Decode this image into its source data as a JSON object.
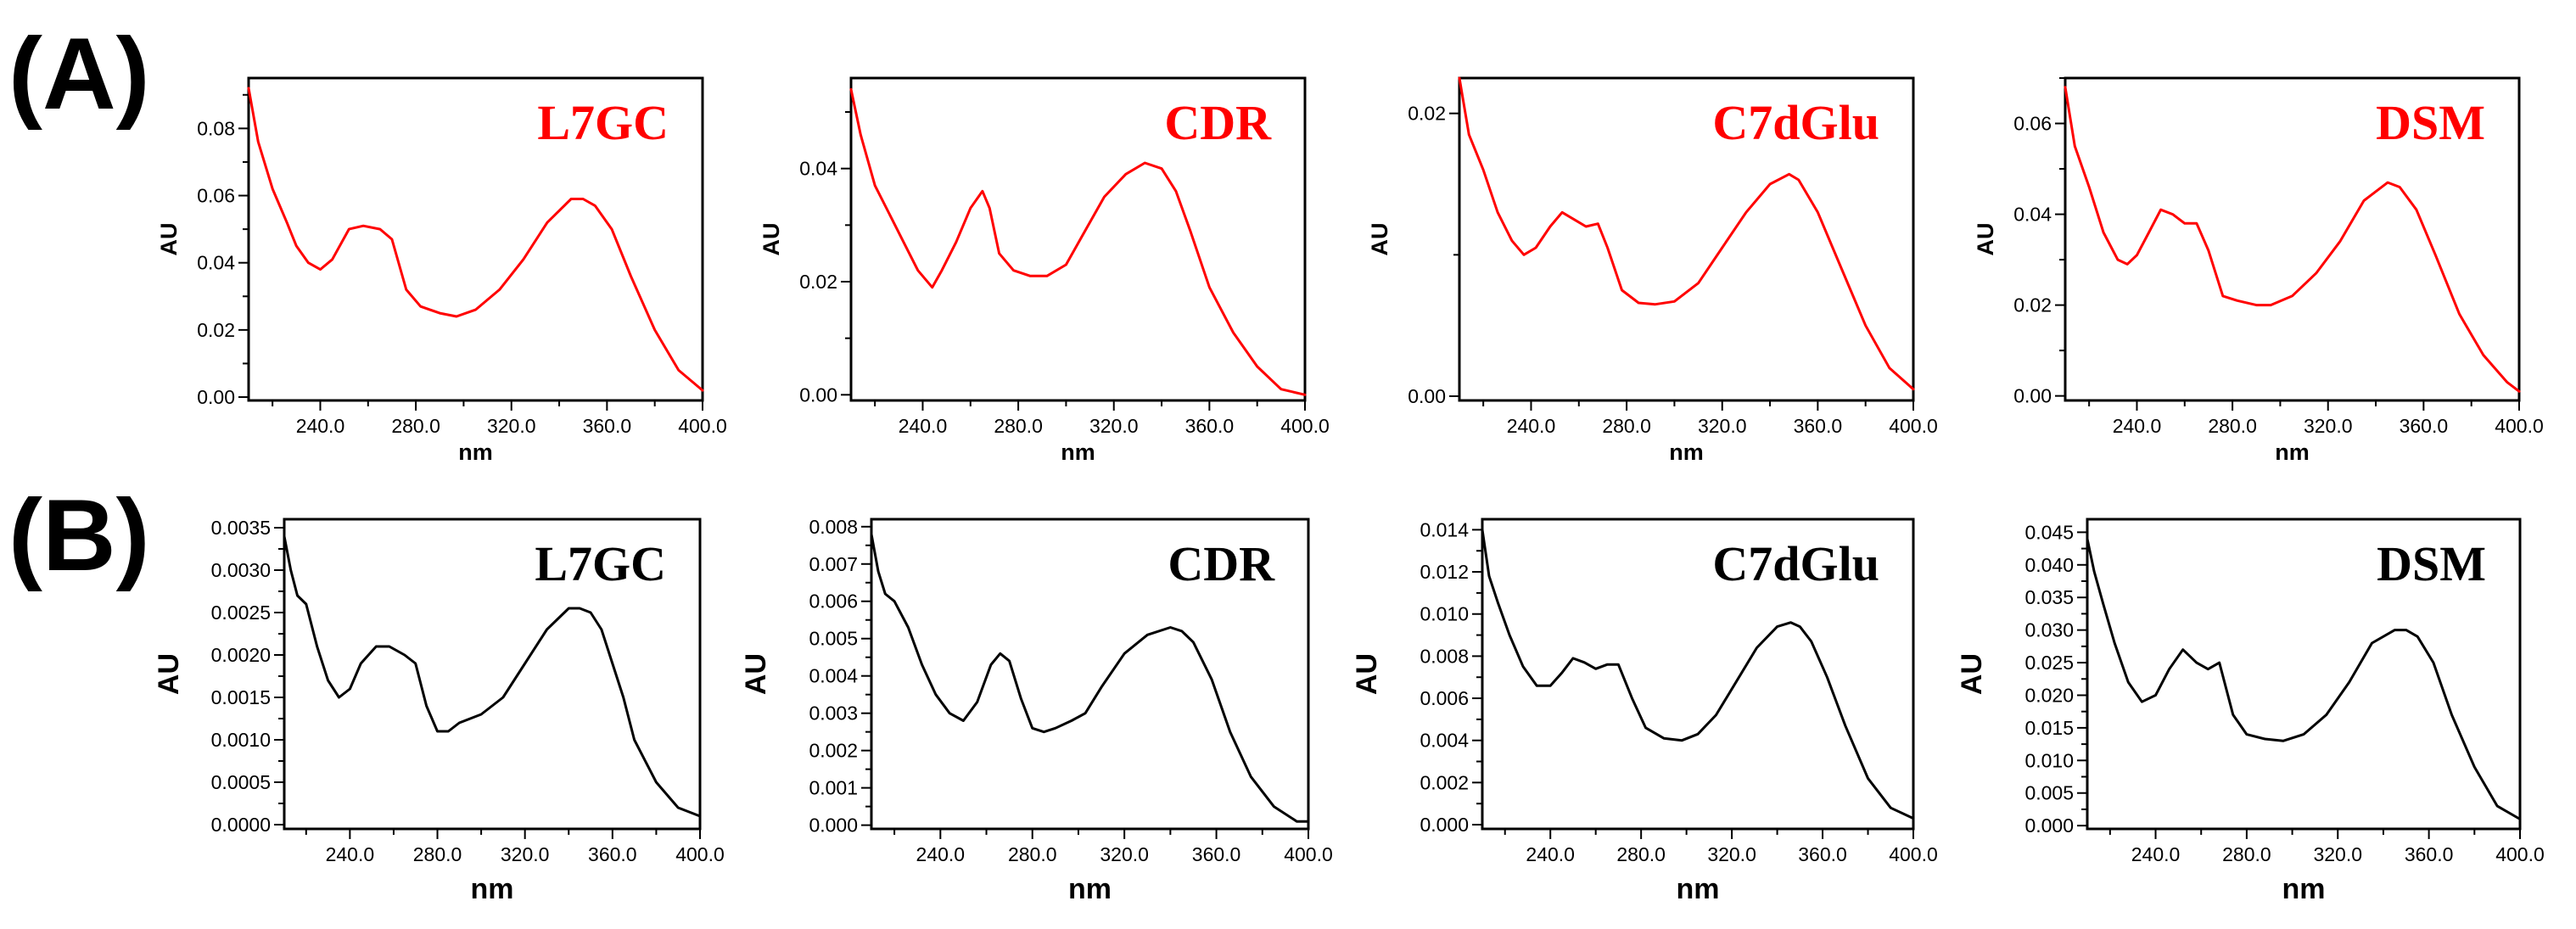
{
  "figure": {
    "panel_labels": [
      "(A)",
      "(B)"
    ]
  },
  "chart_data": [
    {
      "type": "line",
      "row": "A",
      "title": "L7GC",
      "title_color": "#ff0000",
      "line_color": "#ff0000",
      "xlabel": "nm",
      "ylabel": "AU",
      "xlim": [
        210,
        400
      ],
      "ylim": [
        -0.001,
        0.095
      ],
      "xticks": [
        "240.0",
        "280.0",
        "320.0",
        "360.0",
        "400.0"
      ],
      "yticks": [
        "0.00",
        "0.02",
        "0.04",
        "0.06",
        "0.08"
      ],
      "x": [
        210,
        214,
        220,
        226,
        230,
        235,
        240,
        245,
        252,
        258,
        265,
        270,
        276,
        282,
        290,
        297,
        305,
        315,
        325,
        335,
        345,
        350,
        355,
        362,
        370,
        380,
        390,
        400
      ],
      "y": [
        0.092,
        0.076,
        0.062,
        0.052,
        0.045,
        0.04,
        0.038,
        0.041,
        0.05,
        0.051,
        0.05,
        0.047,
        0.032,
        0.027,
        0.025,
        0.024,
        0.026,
        0.032,
        0.041,
        0.052,
        0.059,
        0.059,
        0.057,
        0.05,
        0.036,
        0.02,
        0.008,
        0.002
      ]
    },
    {
      "type": "line",
      "row": "A",
      "title": "CDR",
      "title_color": "#ff0000",
      "line_color": "#ff0000",
      "xlabel": "nm",
      "ylabel": "AU",
      "xlim": [
        210,
        400
      ],
      "ylim": [
        -0.001,
        0.056
      ],
      "xticks": [
        "240.0",
        "280.0",
        "320.0",
        "360.0",
        "400.0"
      ],
      "yticks": [
        "0.00",
        "0.02",
        "0.04"
      ],
      "x": [
        210,
        214,
        220,
        226,
        232,
        238,
        244,
        248,
        254,
        260,
        265,
        268,
        272,
        278,
        285,
        292,
        300,
        308,
        316,
        325,
        333,
        340,
        346,
        352,
        360,
        370,
        380,
        390,
        400
      ],
      "y": [
        0.054,
        0.046,
        0.037,
        0.032,
        0.027,
        0.022,
        0.019,
        0.022,
        0.027,
        0.033,
        0.036,
        0.033,
        0.025,
        0.022,
        0.021,
        0.021,
        0.023,
        0.029,
        0.035,
        0.039,
        0.041,
        0.04,
        0.036,
        0.029,
        0.019,
        0.011,
        0.005,
        0.001,
        0.0
      ]
    },
    {
      "type": "line",
      "row": "A",
      "title": "C7dGlu",
      "title_color": "#ff0000",
      "line_color": "#ff0000",
      "xlabel": "nm",
      "ylabel": "AU",
      "xlim": [
        210,
        400
      ],
      "ylim": [
        -0.0003,
        0.0225
      ],
      "xticks": [
        "240.0",
        "280.0",
        "320.0",
        "360.0",
        "400.0"
      ],
      "yticks": [
        "0.00",
        "0.02"
      ],
      "x": [
        210,
        214,
        220,
        226,
        232,
        237,
        242,
        248,
        253,
        258,
        263,
        268,
        272,
        278,
        285,
        292,
        300,
        310,
        320,
        330,
        340,
        348,
        352,
        360,
        370,
        380,
        390,
        400
      ],
      "y": [
        0.0225,
        0.0185,
        0.016,
        0.013,
        0.011,
        0.01,
        0.0105,
        0.012,
        0.013,
        0.0125,
        0.012,
        0.0122,
        0.0105,
        0.0075,
        0.0066,
        0.0065,
        0.0067,
        0.008,
        0.0105,
        0.013,
        0.015,
        0.0157,
        0.0153,
        0.013,
        0.009,
        0.005,
        0.002,
        0.0005
      ]
    },
    {
      "type": "line",
      "row": "A",
      "title": "DSM",
      "title_color": "#ff0000",
      "line_color": "#ff0000",
      "xlabel": "nm",
      "ylabel": "AU",
      "xlim": [
        210,
        400
      ],
      "ylim": [
        -0.001,
        0.07
      ],
      "xticks": [
        "240.0",
        "280.0",
        "320.0",
        "360.0",
        "400.0"
      ],
      "yticks": [
        "0.00",
        "0.02",
        "0.04",
        "0.06"
      ],
      "x": [
        210,
        214,
        220,
        226,
        232,
        236,
        240,
        245,
        250,
        255,
        260,
        265,
        270,
        276,
        282,
        290,
        296,
        305,
        315,
        325,
        335,
        345,
        350,
        357,
        365,
        375,
        385,
        395,
        400
      ],
      "y": [
        0.068,
        0.055,
        0.046,
        0.036,
        0.03,
        0.029,
        0.031,
        0.036,
        0.041,
        0.04,
        0.038,
        0.038,
        0.032,
        0.022,
        0.021,
        0.02,
        0.02,
        0.022,
        0.027,
        0.034,
        0.043,
        0.047,
        0.046,
        0.041,
        0.031,
        0.018,
        0.009,
        0.003,
        0.001
      ]
    },
    {
      "type": "line",
      "row": "B",
      "title": "L7GC",
      "title_color": "#000000",
      "line_color": "#000000",
      "xlabel": "nm",
      "ylabel": "AU",
      "xlim": [
        210,
        400
      ],
      "ylim": [
        -5e-05,
        0.0036
      ],
      "xticks": [
        "240.0",
        "280.0",
        "320.0",
        "360.0",
        "400.0"
      ],
      "yticks": [
        "0.0000",
        "0.0005",
        "0.0010",
        "0.0015",
        "0.0020",
        "0.0025",
        "0.0030",
        "0.0035"
      ],
      "x": [
        210,
        213,
        216,
        220,
        225,
        230,
        235,
        240,
        245,
        252,
        258,
        265,
        270,
        275,
        280,
        285,
        290,
        300,
        310,
        320,
        330,
        340,
        345,
        350,
        355,
        360,
        365,
        370,
        380,
        390,
        400
      ],
      "y": [
        0.0034,
        0.003,
        0.0027,
        0.0026,
        0.0021,
        0.0017,
        0.0015,
        0.0016,
        0.0019,
        0.0021,
        0.0021,
        0.002,
        0.0019,
        0.0014,
        0.0011,
        0.0011,
        0.0012,
        0.0013,
        0.0015,
        0.0019,
        0.0023,
        0.00255,
        0.00255,
        0.0025,
        0.0023,
        0.0019,
        0.0015,
        0.001,
        0.0005,
        0.0002,
        0.0001
      ]
    },
    {
      "type": "line",
      "row": "B",
      "title": "CDR",
      "title_color": "#000000",
      "line_color": "#000000",
      "xlabel": "nm",
      "ylabel": "AU",
      "xlim": [
        210,
        400
      ],
      "ylim": [
        -0.0001,
        0.0082
      ],
      "xticks": [
        "240.0",
        "280.0",
        "320.0",
        "360.0",
        "400.0"
      ],
      "yticks": [
        "0.000",
        "0.001",
        "0.002",
        "0.003",
        "0.004",
        "0.005",
        "0.006",
        "0.007",
        "0.008"
      ],
      "x": [
        210,
        213,
        216,
        220,
        226,
        232,
        238,
        244,
        250,
        256,
        262,
        266,
        270,
        275,
        280,
        285,
        290,
        297,
        303,
        310,
        320,
        330,
        340,
        345,
        350,
        358,
        366,
        375,
        385,
        395,
        400
      ],
      "y": [
        0.0078,
        0.0068,
        0.0062,
        0.006,
        0.0053,
        0.0043,
        0.0035,
        0.003,
        0.0028,
        0.0033,
        0.0043,
        0.0046,
        0.0044,
        0.0034,
        0.0026,
        0.0025,
        0.0026,
        0.0028,
        0.003,
        0.0037,
        0.0046,
        0.0051,
        0.0053,
        0.0052,
        0.0049,
        0.0039,
        0.0025,
        0.0013,
        0.0005,
        0.0001,
        0.0001
      ]
    },
    {
      "type": "line",
      "row": "B",
      "title": "C7dGlu",
      "title_color": "#000000",
      "line_color": "#000000",
      "xlabel": "nm",
      "ylabel": "AU",
      "xlim": [
        210,
        400
      ],
      "ylim": [
        -0.0002,
        0.0145
      ],
      "xticks": [
        "240.0",
        "280.0",
        "320.0",
        "360.0",
        "400.0"
      ],
      "yticks": [
        "0.000",
        "0.002",
        "0.004",
        "0.006",
        "0.008",
        "0.010",
        "0.012",
        "0.014"
      ],
      "x": [
        210,
        213,
        217,
        222,
        228,
        234,
        240,
        245,
        250,
        255,
        260,
        265,
        270,
        276,
        282,
        290,
        298,
        305,
        313,
        322,
        331,
        340,
        346,
        350,
        355,
        362,
        370,
        380,
        390,
        400
      ],
      "y": [
        0.014,
        0.0118,
        0.0105,
        0.009,
        0.0075,
        0.0066,
        0.0066,
        0.0072,
        0.0079,
        0.0077,
        0.0074,
        0.0076,
        0.0076,
        0.006,
        0.0046,
        0.0041,
        0.004,
        0.0043,
        0.0052,
        0.0068,
        0.0084,
        0.0094,
        0.0096,
        0.0094,
        0.0087,
        0.007,
        0.0047,
        0.0022,
        0.0008,
        0.0003
      ]
    },
    {
      "type": "line",
      "row": "B",
      "title": "DSM",
      "title_color": "#000000",
      "line_color": "#000000",
      "xlabel": "nm",
      "ylabel": "AU",
      "xlim": [
        210,
        400
      ],
      "ylim": [
        -0.0005,
        0.047
      ],
      "xticks": [
        "240.0",
        "280.0",
        "320.0",
        "360.0",
        "400.0"
      ],
      "yticks": [
        "0.000",
        "0.005",
        "0.010",
        "0.015",
        "0.020",
        "0.025",
        "0.030",
        "0.035",
        "0.040",
        "0.045"
      ],
      "x": [
        210,
        213,
        217,
        222,
        228,
        234,
        240,
        246,
        252,
        258,
        263,
        268,
        274,
        280,
        288,
        296,
        305,
        315,
        325,
        335,
        345,
        350,
        355,
        362,
        370,
        380,
        390,
        400
      ],
      "y": [
        0.044,
        0.039,
        0.034,
        0.028,
        0.022,
        0.019,
        0.02,
        0.024,
        0.027,
        0.025,
        0.024,
        0.025,
        0.017,
        0.014,
        0.0133,
        0.013,
        0.014,
        0.017,
        0.022,
        0.028,
        0.03,
        0.03,
        0.029,
        0.025,
        0.017,
        0.009,
        0.003,
        0.001
      ]
    }
  ]
}
